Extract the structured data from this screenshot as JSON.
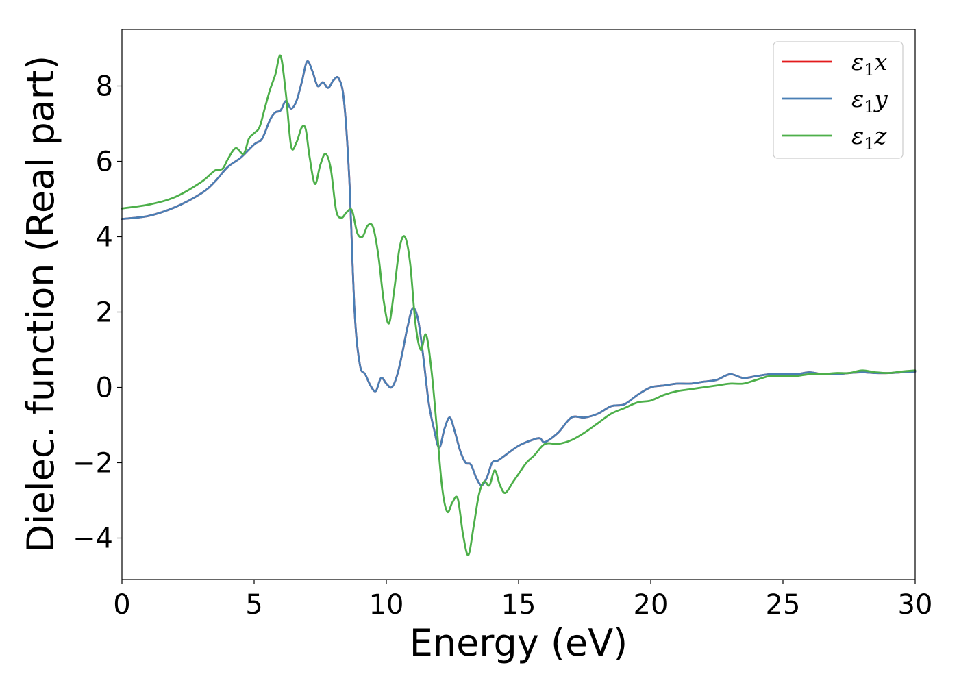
{
  "chart_data": {
    "type": "line",
    "title": "",
    "xlabel": "Energy (eV)",
    "ylabel": "Dielec. function (Real part)",
    "xlim": [
      0,
      30
    ],
    "ylim": [
      -5.1,
      9.5
    ],
    "xticks": [
      0,
      5,
      10,
      15,
      20,
      25,
      30
    ],
    "xtick_labels": [
      "0",
      "5",
      "10",
      "15",
      "20",
      "25",
      "30"
    ],
    "yticks": [
      -4,
      -2,
      0,
      2,
      4,
      6,
      8
    ],
    "ytick_labels": [
      "−4",
      "−2",
      "0",
      "2",
      "4",
      "6",
      "8"
    ],
    "grid": false,
    "legend_position": "top-right",
    "legend_entries": [
      {
        "symbol": "ε",
        "sub": "1",
        "axis": "x",
        "color": "#e31a1c"
      },
      {
        "symbol": "ε",
        "sub": "1",
        "axis": "y",
        "color": "#4a7fb5"
      },
      {
        "symbol": "ε",
        "sub": "1",
        "axis": "z",
        "color": "#4daf4a"
      }
    ],
    "series": [
      {
        "color": "#e31a1c",
        "x": [
          0,
          1,
          2,
          3,
          3.5,
          4,
          4.5,
          5,
          5.3,
          5.6,
          5.8,
          6.0,
          6.2,
          6.4,
          6.6,
          6.8,
          7.0,
          7.2,
          7.4,
          7.6,
          7.8,
          8.0,
          8.2,
          8.4,
          8.6,
          8.8,
          9.0,
          9.2,
          9.4,
          9.6,
          9.8,
          10.0,
          10.2,
          10.4,
          10.6,
          10.8,
          11.0,
          11.2,
          11.4,
          11.6,
          11.8,
          12.0,
          12.2,
          12.4,
          12.6,
          12.8,
          13.0,
          13.2,
          13.4,
          13.6,
          13.8,
          14.0,
          14.2,
          14.5,
          15.0,
          15.5,
          15.8,
          16.0,
          16.5,
          17.0,
          17.5,
          18.0,
          18.5,
          19.0,
          19.5,
          20.0,
          20.5,
          21.0,
          21.5,
          22.0,
          22.5,
          23.0,
          23.5,
          24.0,
          24.5,
          25.0,
          25.5,
          26.0,
          26.5,
          27.0,
          27.5,
          28.0,
          28.5,
          29.0,
          29.5,
          30.0
        ],
        "y": [
          4.47,
          4.55,
          4.78,
          5.15,
          5.45,
          5.85,
          6.1,
          6.45,
          6.6,
          7.1,
          7.3,
          7.35,
          7.6,
          7.4,
          7.6,
          8.1,
          8.65,
          8.4,
          8.0,
          8.1,
          7.95,
          8.15,
          8.2,
          7.6,
          5.5,
          2.0,
          0.6,
          0.35,
          0.05,
          -0.1,
          0.25,
          0.1,
          0.0,
          0.3,
          0.9,
          1.6,
          2.1,
          1.8,
          0.8,
          -0.4,
          -1.1,
          -1.6,
          -1.1,
          -0.8,
          -1.2,
          -1.7,
          -2.0,
          -2.05,
          -2.4,
          -2.6,
          -2.4,
          -2.0,
          -1.95,
          -1.8,
          -1.55,
          -1.4,
          -1.35,
          -1.45,
          -1.2,
          -0.8,
          -0.8,
          -0.7,
          -0.5,
          -0.45,
          -0.2,
          0.0,
          0.05,
          0.1,
          0.1,
          0.15,
          0.2,
          0.35,
          0.25,
          0.3,
          0.35,
          0.35,
          0.35,
          0.4,
          0.35,
          0.35,
          0.38,
          0.4,
          0.38,
          0.38,
          0.4,
          0.42
        ]
      },
      {
        "color": "#4a7fb5",
        "x": [
          0,
          1,
          2,
          3,
          3.5,
          4,
          4.5,
          5,
          5.3,
          5.6,
          5.8,
          6.0,
          6.2,
          6.4,
          6.6,
          6.8,
          7.0,
          7.2,
          7.4,
          7.6,
          7.8,
          8.0,
          8.2,
          8.4,
          8.6,
          8.8,
          9.0,
          9.2,
          9.4,
          9.6,
          9.8,
          10.0,
          10.2,
          10.4,
          10.6,
          10.8,
          11.0,
          11.2,
          11.4,
          11.6,
          11.8,
          12.0,
          12.2,
          12.4,
          12.6,
          12.8,
          13.0,
          13.2,
          13.4,
          13.6,
          13.8,
          14.0,
          14.2,
          14.5,
          15.0,
          15.5,
          15.8,
          16.0,
          16.5,
          17.0,
          17.5,
          18.0,
          18.5,
          19.0,
          19.5,
          20.0,
          20.5,
          21.0,
          21.5,
          22.0,
          22.5,
          23.0,
          23.5,
          24.0,
          24.5,
          25.0,
          25.5,
          26.0,
          26.5,
          27.0,
          27.5,
          28.0,
          28.5,
          29.0,
          29.5,
          30.0
        ],
        "y": [
          4.47,
          4.55,
          4.78,
          5.15,
          5.45,
          5.85,
          6.1,
          6.45,
          6.6,
          7.1,
          7.3,
          7.35,
          7.6,
          7.4,
          7.6,
          8.1,
          8.65,
          8.4,
          8.0,
          8.1,
          7.95,
          8.15,
          8.2,
          7.6,
          5.5,
          2.0,
          0.6,
          0.35,
          0.05,
          -0.1,
          0.25,
          0.1,
          0.0,
          0.3,
          0.9,
          1.6,
          2.1,
          1.8,
          0.8,
          -0.4,
          -1.1,
          -1.6,
          -1.1,
          -0.8,
          -1.2,
          -1.7,
          -2.0,
          -2.05,
          -2.4,
          -2.6,
          -2.4,
          -2.0,
          -1.95,
          -1.8,
          -1.55,
          -1.4,
          -1.35,
          -1.45,
          -1.2,
          -0.8,
          -0.8,
          -0.7,
          -0.5,
          -0.45,
          -0.2,
          0.0,
          0.05,
          0.1,
          0.1,
          0.15,
          0.2,
          0.35,
          0.25,
          0.3,
          0.35,
          0.35,
          0.35,
          0.4,
          0.35,
          0.35,
          0.38,
          0.4,
          0.38,
          0.38,
          0.4,
          0.42
        ]
      },
      {
        "color": "#4daf4a",
        "x": [
          0,
          1,
          2,
          3,
          3.5,
          3.8,
          4.0,
          4.3,
          4.6,
          4.8,
          5.0,
          5.2,
          5.4,
          5.6,
          5.8,
          6.0,
          6.2,
          6.4,
          6.6,
          6.8,
          6.95,
          7.1,
          7.3,
          7.5,
          7.7,
          7.9,
          8.1,
          8.3,
          8.5,
          8.7,
          8.9,
          9.1,
          9.3,
          9.5,
          9.7,
          9.9,
          10.1,
          10.3,
          10.5,
          10.7,
          10.9,
          11.1,
          11.3,
          11.5,
          11.7,
          11.9,
          12.1,
          12.3,
          12.5,
          12.7,
          12.9,
          13.1,
          13.3,
          13.5,
          13.7,
          13.9,
          14.1,
          14.3,
          14.5,
          14.8,
          15.0,
          15.3,
          15.6,
          16.0,
          16.5,
          17.0,
          17.5,
          18.0,
          18.5,
          19.0,
          19.5,
          20.0,
          20.5,
          21.0,
          21.5,
          22.0,
          22.5,
          23.0,
          23.5,
          24.0,
          24.5,
          25.0,
          25.5,
          26.0,
          26.5,
          27.0,
          27.5,
          28.0,
          28.5,
          29.0,
          29.5,
          30.0
        ],
        "y": [
          4.75,
          4.85,
          5.05,
          5.45,
          5.75,
          5.8,
          6.05,
          6.35,
          6.2,
          6.6,
          6.75,
          6.9,
          7.4,
          7.9,
          8.3,
          8.8,
          7.8,
          6.4,
          6.5,
          6.9,
          6.85,
          6.1,
          5.4,
          5.9,
          6.2,
          5.8,
          4.7,
          4.5,
          4.65,
          4.7,
          4.1,
          4.0,
          4.3,
          4.25,
          3.5,
          2.3,
          1.7,
          2.6,
          3.7,
          4.0,
          3.3,
          1.7,
          1.0,
          1.4,
          0.5,
          -1.0,
          -2.6,
          -3.3,
          -3.05,
          -2.95,
          -3.9,
          -4.45,
          -3.7,
          -2.85,
          -2.5,
          -2.6,
          -2.2,
          -2.6,
          -2.8,
          -2.5,
          -2.3,
          -2.0,
          -1.8,
          -1.5,
          -1.5,
          -1.4,
          -1.2,
          -0.95,
          -0.7,
          -0.55,
          -0.4,
          -0.35,
          -0.2,
          -0.1,
          -0.05,
          0.0,
          0.05,
          0.1,
          0.1,
          0.2,
          0.3,
          0.3,
          0.3,
          0.35,
          0.35,
          0.38,
          0.38,
          0.45,
          0.4,
          0.38,
          0.42,
          0.45
        ]
      }
    ]
  }
}
